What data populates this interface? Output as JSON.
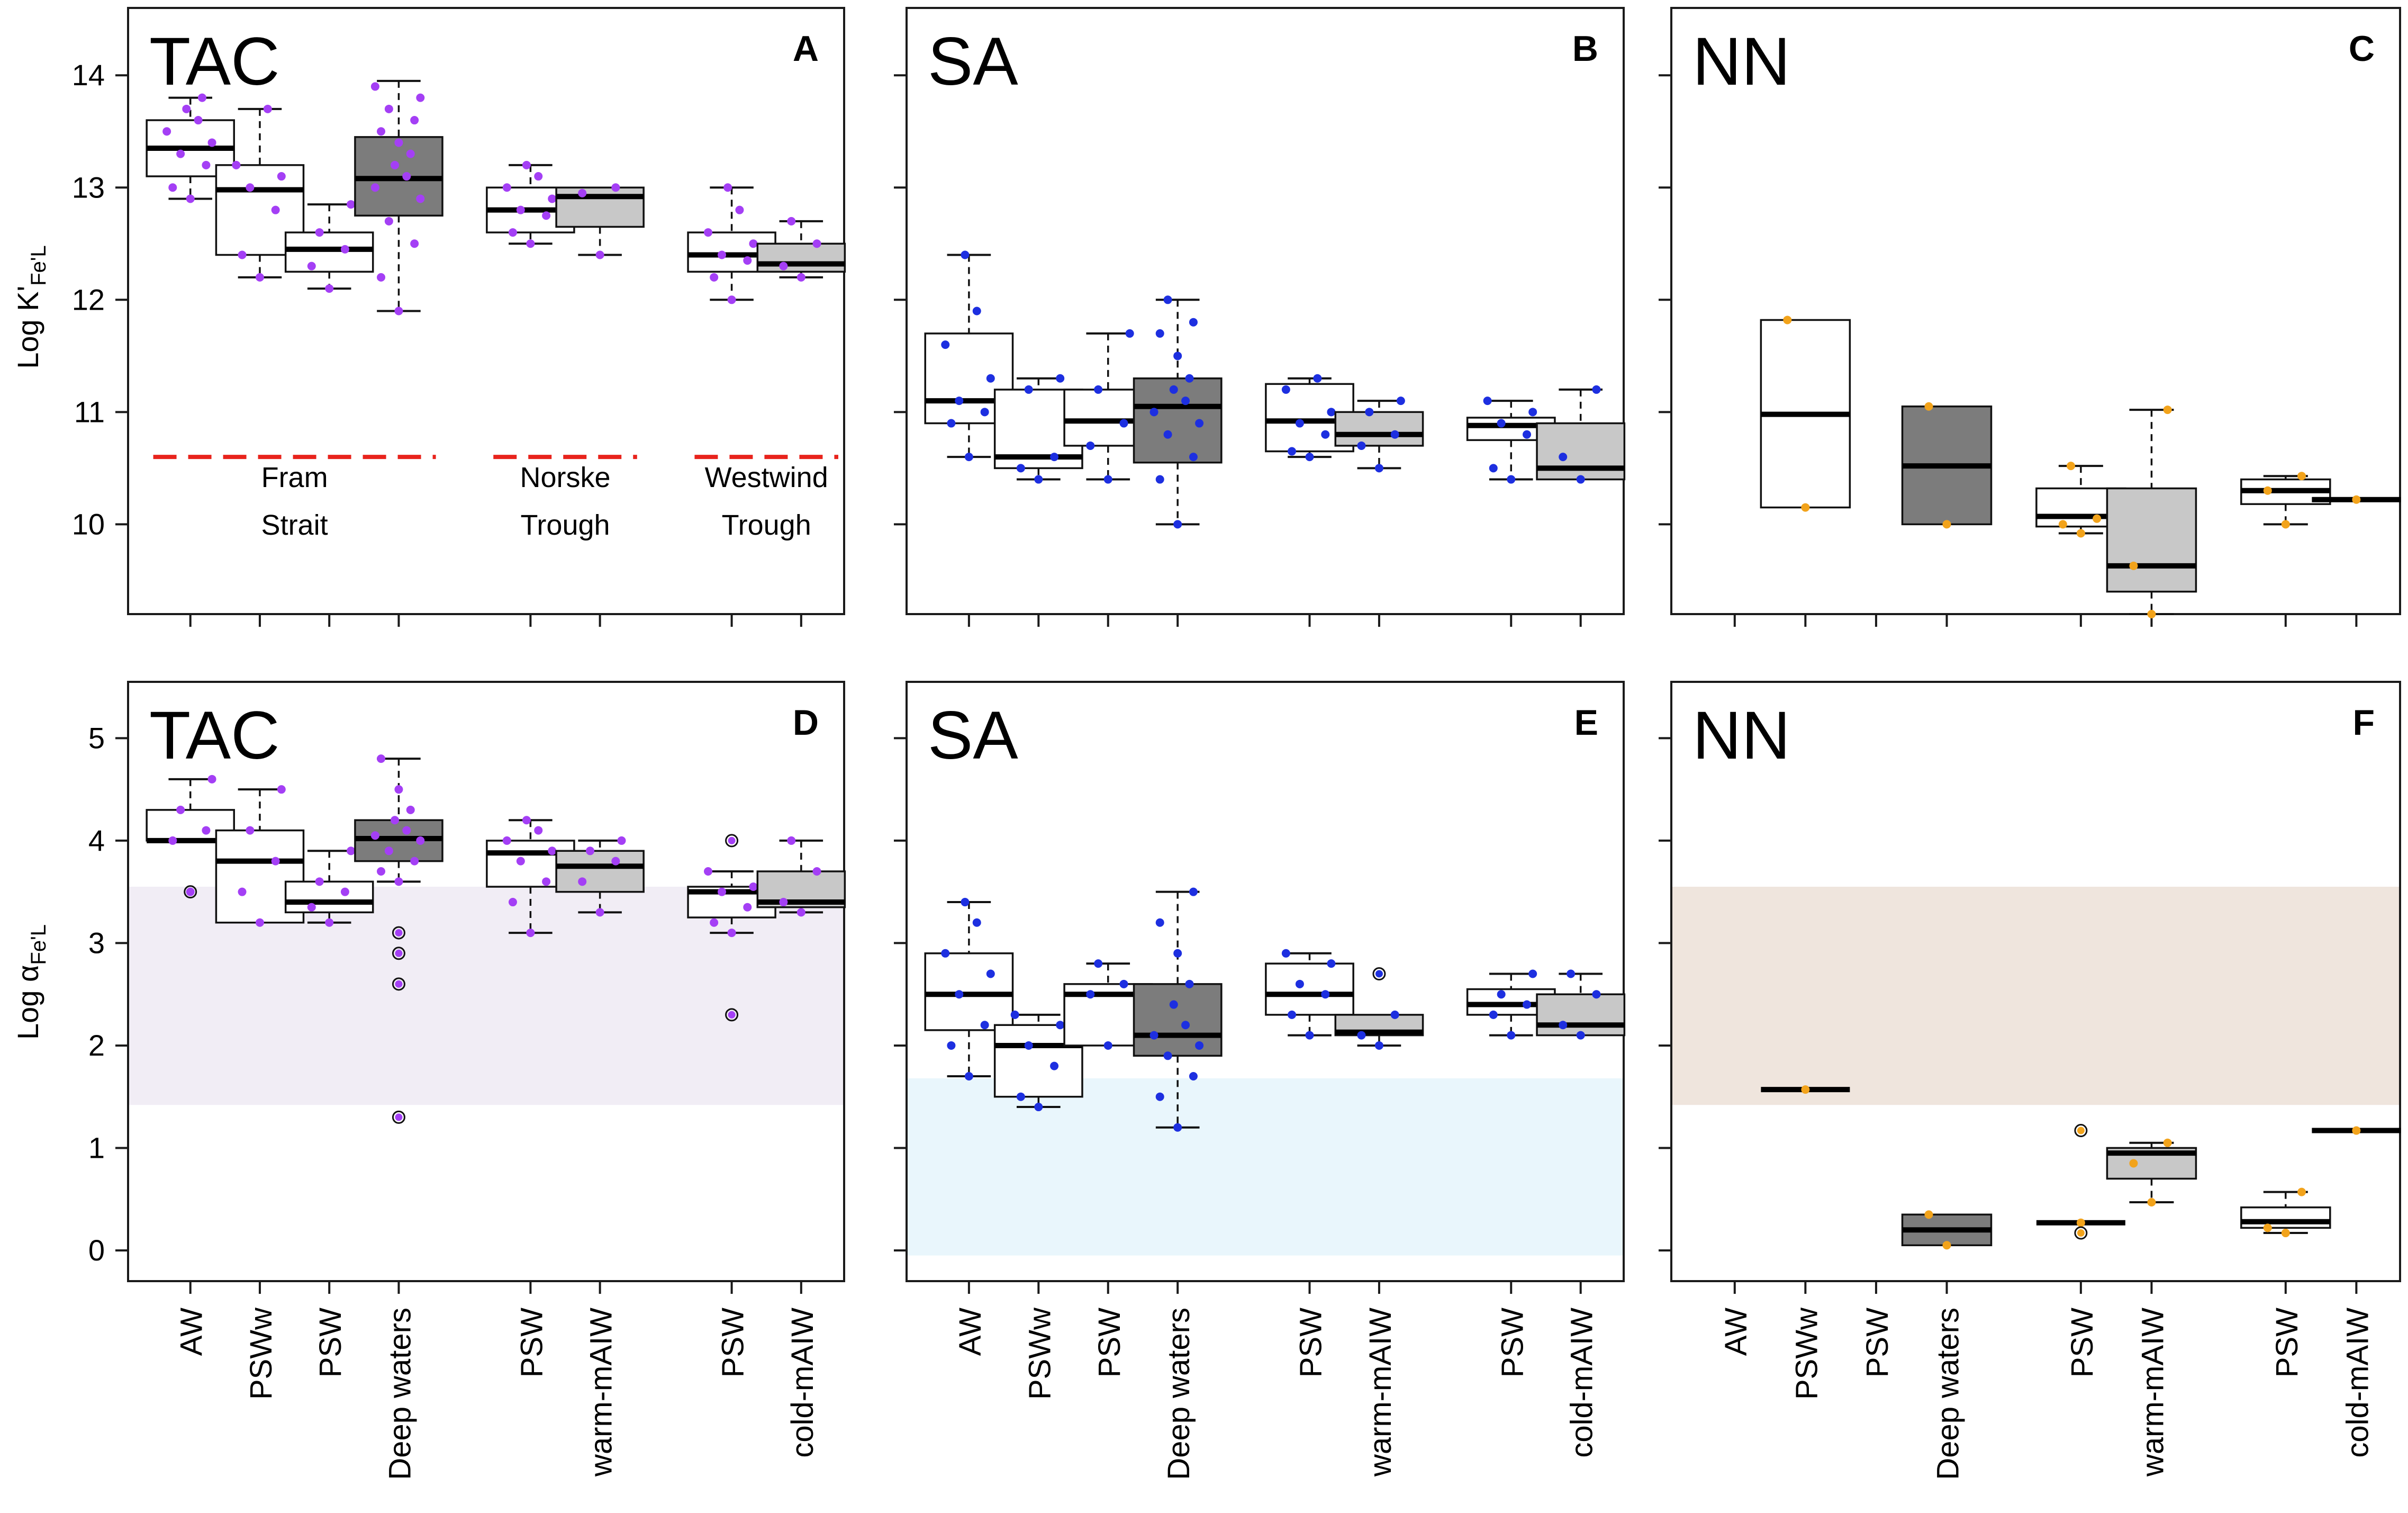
{
  "figure": {
    "ylabel_top": "Log K'",
    "ylabel_top_sub": "Fe'L",
    "ylabel_bottom": "Log α",
    "ylabel_bottom_sub": "Fe'L",
    "x_categories": [
      "AW",
      "PSWw",
      "PSW",
      "Deep waters",
      "PSW",
      "warm-mAIW",
      "PSW",
      "cold-mAIW"
    ],
    "region_labels": [
      "Fram",
      "Strait",
      "Norske",
      "Trough",
      "Westwind",
      "Trough"
    ],
    "colors": {
      "tac_points": "#a43ff5",
      "sa_points": "#1d2fe0",
      "nn_points": "#f2a31b",
      "box_white": "#ffffff",
      "box_dark": "#7c7c7c",
      "box_light": "#c8c8c8",
      "reference_line": "#e8231c",
      "band_tac": "#f1edf5",
      "band_sa": "#e9f6fc",
      "band_nn": "#efe5dd"
    }
  },
  "chart_data": [
    {
      "type": "box",
      "panel": "A",
      "title": "TAC",
      "ylabel": "Log K'Fe'L",
      "ylim": [
        9.2,
        14.6
      ],
      "yticks": [
        10,
        11,
        12,
        13,
        14
      ],
      "reference_line": 10.6,
      "categories": [
        "AW",
        "PSWw",
        "PSW",
        "Deep waters",
        "PSW",
        "warm-mAIW",
        "PSW",
        "cold-mAIW"
      ],
      "boxes": [
        {
          "q1": 13.1,
          "median": 13.35,
          "q3": 13.6,
          "lower": 12.9,
          "upper": 13.8,
          "fill": "white",
          "points": [
            12.9,
            13.0,
            13.2,
            13.3,
            13.4,
            13.5,
            13.6,
            13.7,
            13.8
          ]
        },
        {
          "q1": 12.4,
          "median": 12.98,
          "q3": 13.2,
          "lower": 12.2,
          "upper": 13.7,
          "fill": "white",
          "points": [
            12.2,
            12.4,
            12.8,
            13.0,
            13.1,
            13.2,
            13.7
          ]
        },
        {
          "q1": 12.25,
          "median": 12.45,
          "q3": 12.6,
          "lower": 12.1,
          "upper": 12.85,
          "fill": "white",
          "points": [
            12.1,
            12.3,
            12.45,
            12.6,
            12.85
          ]
        },
        {
          "q1": 12.75,
          "median": 13.08,
          "q3": 13.45,
          "lower": 11.9,
          "upper": 13.95,
          "fill": "dark",
          "points": [
            11.9,
            12.2,
            12.5,
            12.7,
            12.9,
            13.0,
            13.1,
            13.2,
            13.3,
            13.4,
            13.5,
            13.6,
            13.7,
            13.8,
            13.9
          ]
        },
        {
          "q1": 12.6,
          "median": 12.8,
          "q3": 13.0,
          "lower": 12.5,
          "upper": 13.2,
          "fill": "white",
          "points": [
            12.5,
            12.6,
            12.75,
            12.8,
            12.9,
            13.0,
            13.1,
            13.2
          ]
        },
        {
          "q1": 12.65,
          "median": 12.92,
          "q3": 13.0,
          "lower": 12.4,
          "upper": 13.0,
          "fill": "light",
          "points": [
            12.4,
            12.95,
            13.0
          ]
        },
        {
          "q1": 12.25,
          "median": 12.4,
          "q3": 12.6,
          "lower": 12.0,
          "upper": 13.0,
          "fill": "white",
          "points": [
            12.0,
            12.2,
            12.35,
            12.4,
            12.5,
            12.6,
            12.8,
            13.0
          ]
        },
        {
          "q1": 12.25,
          "median": 12.32,
          "q3": 12.5,
          "lower": 12.2,
          "upper": 12.7,
          "fill": "light",
          "points": [
            12.2,
            12.3,
            12.5,
            12.7
          ]
        }
      ]
    },
    {
      "type": "box",
      "panel": "B",
      "title": "SA",
      "ylim": [
        9.2,
        14.6
      ],
      "categories": [
        "AW",
        "PSWw",
        "PSW",
        "Deep waters",
        "PSW",
        "warm-mAIW",
        "PSW",
        "cold-mAIW"
      ],
      "boxes": [
        {
          "q1": 10.9,
          "median": 11.1,
          "q3": 11.7,
          "lower": 10.6,
          "upper": 12.4,
          "fill": "white",
          "points": [
            10.6,
            10.9,
            11.0,
            11.1,
            11.3,
            11.6,
            11.9,
            12.4
          ]
        },
        {
          "q1": 10.5,
          "median": 10.6,
          "q3": 11.2,
          "lower": 10.4,
          "upper": 11.3,
          "fill": "white",
          "points": [
            10.4,
            10.5,
            10.6,
            11.2,
            11.3
          ]
        },
        {
          "q1": 10.7,
          "median": 10.92,
          "q3": 11.2,
          "lower": 10.4,
          "upper": 11.7,
          "fill": "white",
          "points": [
            10.4,
            10.7,
            10.9,
            11.2,
            11.7
          ]
        },
        {
          "q1": 10.55,
          "median": 11.05,
          "q3": 11.3,
          "lower": 10.0,
          "upper": 12.0,
          "fill": "dark",
          "points": [
            10.0,
            10.4,
            10.6,
            10.8,
            10.9,
            11.0,
            11.1,
            11.2,
            11.3,
            11.5,
            11.7,
            11.8,
            12.0
          ]
        },
        {
          "q1": 10.65,
          "median": 10.92,
          "q3": 11.25,
          "lower": 10.6,
          "upper": 11.3,
          "fill": "white",
          "points": [
            10.6,
            10.65,
            10.8,
            10.9,
            11.0,
            11.2,
            11.3
          ]
        },
        {
          "q1": 10.7,
          "median": 10.8,
          "q3": 11.0,
          "lower": 10.5,
          "upper": 11.1,
          "fill": "light",
          "points": [
            10.5,
            10.7,
            10.8,
            11.0,
            11.1
          ]
        },
        {
          "q1": 10.75,
          "median": 10.88,
          "q3": 10.95,
          "lower": 10.4,
          "upper": 11.1,
          "fill": "white",
          "points": [
            10.4,
            10.5,
            10.8,
            10.9,
            11.0,
            11.1
          ]
        },
        {
          "q1": 10.4,
          "median": 10.5,
          "q3": 10.9,
          "lower": 10.4,
          "upper": 11.2,
          "fill": "light",
          "points": [
            10.4,
            10.6,
            11.2
          ]
        }
      ]
    },
    {
      "type": "box",
      "panel": "C",
      "title": "NN",
      "ylim": [
        9.2,
        14.6
      ],
      "categories": [
        "AW",
        "PSWw",
        "PSW",
        "Deep waters",
        "PSW",
        "warm-mAIW",
        "PSW",
        "cold-mAIW"
      ],
      "boxes": [
        null,
        {
          "q1": 10.15,
          "median": 10.98,
          "q3": 11.82,
          "lower": 10.15,
          "upper": 11.82,
          "fill": "white",
          "points": [
            10.15,
            11.82
          ]
        },
        null,
        {
          "q1": 10.0,
          "median": 10.52,
          "q3": 11.05,
          "lower": 10.0,
          "upper": 11.05,
          "fill": "dark",
          "points": [
            10.0,
            11.05
          ]
        },
        {
          "q1": 9.98,
          "median": 10.07,
          "q3": 10.32,
          "lower": 9.92,
          "upper": 10.52,
          "fill": "white",
          "points": [
            9.92,
            10.0,
            10.05,
            10.52
          ]
        },
        {
          "q1": 9.4,
          "median": 9.63,
          "q3": 10.32,
          "lower": 9.2,
          "upper": 11.02,
          "fill": "light",
          "points": [
            9.2,
            9.63,
            11.02
          ]
        },
        {
          "q1": 10.18,
          "median": 10.3,
          "q3": 10.4,
          "lower": 10.0,
          "upper": 10.43,
          "fill": "white",
          "points": [
            10.0,
            10.3,
            10.43
          ]
        },
        {
          "q1": 10.22,
          "median": 10.22,
          "q3": 10.22,
          "lower": 10.22,
          "upper": 10.22,
          "fill": "light",
          "points": [
            10.22
          ]
        }
      ]
    },
    {
      "type": "box",
      "panel": "D",
      "title": "TAC",
      "ylabel": "Log αFe'L",
      "ylim": [
        -0.3,
        5.55
      ],
      "yticks": [
        0,
        1,
        2,
        3,
        4,
        5
      ],
      "band": [
        1.42,
        3.55
      ],
      "categories": [
        "AW",
        "PSWw",
        "PSW",
        "Deep waters",
        "PSW",
        "warm-mAIW",
        "PSW",
        "cold-mAIW"
      ],
      "boxes": [
        {
          "q1": 4.0,
          "median": 4.0,
          "q3": 4.3,
          "lower": 4.0,
          "upper": 4.6,
          "fill": "white",
          "points": [
            3.5,
            4.0,
            4.1,
            4.3,
            4.6
          ],
          "outliers": [
            3.5
          ]
        },
        {
          "q1": 3.2,
          "median": 3.8,
          "q3": 4.1,
          "lower": 3.2,
          "upper": 4.5,
          "fill": "white",
          "points": [
            3.2,
            3.5,
            3.8,
            4.1,
            4.5
          ]
        },
        {
          "q1": 3.3,
          "median": 3.4,
          "q3": 3.6,
          "lower": 3.2,
          "upper": 3.9,
          "fill": "white",
          "points": [
            3.2,
            3.35,
            3.5,
            3.6,
            3.9
          ]
        },
        {
          "q1": 3.8,
          "median": 4.02,
          "q3": 4.2,
          "lower": 3.6,
          "upper": 4.8,
          "fill": "dark",
          "points": [
            3.6,
            3.7,
            3.8,
            3.9,
            4.0,
            4.05,
            4.1,
            4.2,
            4.3,
            4.5,
            4.8
          ],
          "outliers": [
            1.3,
            2.6,
            2.9,
            3.1
          ]
        },
        {
          "q1": 3.55,
          "median": 3.88,
          "q3": 4.0,
          "lower": 3.1,
          "upper": 4.2,
          "fill": "white",
          "points": [
            3.1,
            3.4,
            3.6,
            3.8,
            3.9,
            4.0,
            4.1,
            4.2
          ]
        },
        {
          "q1": 3.5,
          "median": 3.75,
          "q3": 3.9,
          "lower": 3.3,
          "upper": 4.0,
          "fill": "light",
          "points": [
            3.3,
            3.6,
            3.8,
            3.9,
            4.0
          ]
        },
        {
          "q1": 3.25,
          "median": 3.5,
          "q3": 3.55,
          "lower": 3.1,
          "upper": 3.7,
          "fill": "white",
          "points": [
            3.1,
            3.2,
            3.35,
            3.5,
            3.55,
            3.7
          ],
          "outliers": [
            2.3,
            4.0
          ]
        },
        {
          "q1": 3.35,
          "median": 3.4,
          "q3": 3.7,
          "lower": 3.3,
          "upper": 4.0,
          "fill": "light",
          "points": [
            3.3,
            3.4,
            3.7,
            4.0
          ]
        }
      ]
    },
    {
      "type": "box",
      "panel": "E",
      "title": "SA",
      "ylim": [
        -0.3,
        5.55
      ],
      "band": [
        -0.05,
        1.68
      ],
      "categories": [
        "AW",
        "PSWw",
        "PSW",
        "Deep waters",
        "PSW",
        "warm-mAIW",
        "PSW",
        "cold-mAIW"
      ],
      "boxes": [
        {
          "q1": 2.15,
          "median": 2.5,
          "q3": 2.9,
          "lower": 1.7,
          "upper": 3.4,
          "fill": "white",
          "points": [
            1.7,
            2.0,
            2.2,
            2.5,
            2.7,
            2.9,
            3.2,
            3.4
          ]
        },
        {
          "q1": 1.5,
          "median": 2.0,
          "q3": 2.2,
          "lower": 1.4,
          "upper": 2.3,
          "fill": "white",
          "points": [
            1.4,
            1.5,
            1.8,
            2.0,
            2.2,
            2.3
          ]
        },
        {
          "q1": 2.0,
          "median": 2.5,
          "q3": 2.6,
          "lower": 2.0,
          "upper": 2.8,
          "fill": "white",
          "points": [
            2.0,
            2.5,
            2.6,
            2.8
          ]
        },
        {
          "q1": 1.9,
          "median": 2.1,
          "q3": 2.6,
          "lower": 1.2,
          "upper": 3.5,
          "fill": "dark",
          "points": [
            1.2,
            1.5,
            1.7,
            1.9,
            2.0,
            2.1,
            2.2,
            2.4,
            2.6,
            2.9,
            3.2,
            3.5
          ]
        },
        {
          "q1": 2.3,
          "median": 2.5,
          "q3": 2.8,
          "lower": 2.1,
          "upper": 2.9,
          "fill": "white",
          "points": [
            2.1,
            2.3,
            2.5,
            2.6,
            2.8,
            2.9
          ]
        },
        {
          "q1": 2.1,
          "median": 2.13,
          "q3": 2.3,
          "lower": 2.0,
          "upper": 2.3,
          "fill": "light",
          "points": [
            2.0,
            2.1,
            2.3
          ],
          "outliers": [
            2.7
          ]
        },
        {
          "q1": 2.3,
          "median": 2.4,
          "q3": 2.55,
          "lower": 2.1,
          "upper": 2.7,
          "fill": "white",
          "points": [
            2.1,
            2.3,
            2.4,
            2.5,
            2.7
          ]
        },
        {
          "q1": 2.1,
          "median": 2.2,
          "q3": 2.5,
          "lower": 2.1,
          "upper": 2.7,
          "fill": "light",
          "points": [
            2.1,
            2.2,
            2.5,
            2.7
          ]
        }
      ]
    },
    {
      "type": "box",
      "panel": "F",
      "title": "NN",
      "ylim": [
        -0.3,
        5.55
      ],
      "band": [
        1.42,
        3.55
      ],
      "categories": [
        "AW",
        "PSWw",
        "PSW",
        "Deep waters",
        "PSW",
        "warm-mAIW",
        "PSW",
        "cold-mAIW"
      ],
      "boxes": [
        null,
        {
          "q1": 1.57,
          "median": 1.57,
          "q3": 1.57,
          "lower": 1.57,
          "upper": 1.57,
          "fill": "white",
          "points": [
            1.57
          ]
        },
        null,
        {
          "q1": 0.05,
          "median": 0.2,
          "q3": 0.35,
          "lower": 0.05,
          "upper": 0.35,
          "fill": "dark",
          "points": [
            0.05,
            0.35
          ]
        },
        {
          "q1": 0.27,
          "median": 0.27,
          "q3": 0.27,
          "lower": 0.27,
          "upper": 0.27,
          "fill": "white",
          "points": [
            0.27
          ],
          "outliers": [
            0.17,
            1.17
          ]
        },
        {
          "q1": 0.7,
          "median": 0.95,
          "q3": 1.0,
          "lower": 0.47,
          "upper": 1.05,
          "fill": "light",
          "points": [
            0.47,
            0.85,
            1.05
          ]
        },
        {
          "q1": 0.22,
          "median": 0.28,
          "q3": 0.42,
          "lower": 0.17,
          "upper": 0.57,
          "fill": "white",
          "points": [
            0.17,
            0.22,
            0.57
          ]
        },
        {
          "q1": 1.17,
          "median": 1.17,
          "q3": 1.17,
          "lower": 1.17,
          "upper": 1.17,
          "fill": "light",
          "points": [
            1.17
          ]
        }
      ]
    }
  ]
}
